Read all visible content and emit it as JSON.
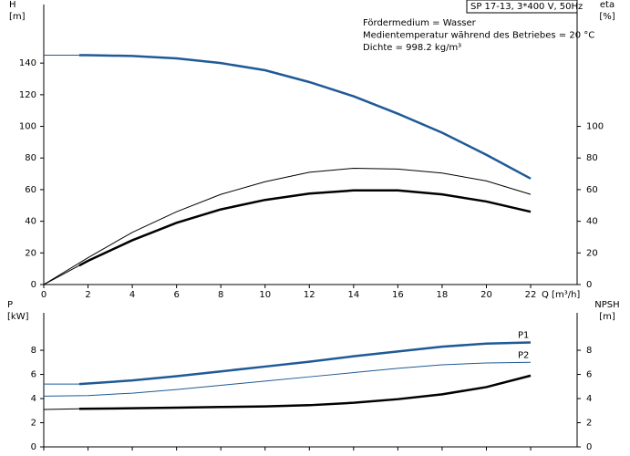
{
  "chart_data": [
    {
      "type": "line",
      "title": "SP 17-13, 3*400 V, 50Hz",
      "annotations": [
        "Fördermedium = Wasser",
        "Medientemperatur während des Betriebes = 20 °C",
        "Dichte = 998.2 kg/m³"
      ],
      "xlabel": "Q [m³/h]",
      "ylabel": "H",
      "ylabel_unit": "[m]",
      "y2label": "eta",
      "y2label_unit": "[%]",
      "xlim": [
        0,
        24.1
      ],
      "ylim": [
        0,
        177
      ],
      "y2lim": [
        0,
        177
      ],
      "xticks": [
        0,
        2,
        4,
        6,
        8,
        10,
        12,
        14,
        16,
        18,
        20,
        22
      ],
      "yticks": [
        0,
        20,
        40,
        60,
        80,
        100,
        120,
        140
      ],
      "y2ticks": [
        0,
        20,
        40,
        60,
        80,
        100
      ],
      "series": [
        {
          "color": "#1f5a96",
          "width": 1,
          "x": [
            0,
            1.6
          ],
          "values": [
            145,
            145
          ]
        },
        {
          "color": "#1f5a96",
          "width": 2.5,
          "x": [
            1.6,
            2,
            4,
            6,
            8,
            10,
            12,
            14,
            16,
            18,
            20,
            22
          ],
          "values": [
            145,
            145,
            144.5,
            143,
            140,
            135.5,
            128,
            119,
            108,
            96,
            82,
            67
          ]
        },
        {
          "color": "#000000",
          "width": 1,
          "axis": "y2",
          "x": [
            0,
            2,
            4,
            6,
            8,
            10,
            12,
            14,
            16,
            18,
            20,
            22
          ],
          "values": [
            0,
            17,
            33,
            46,
            57,
            65,
            71,
            73.5,
            73,
            70.5,
            65.5,
            57
          ]
        },
        {
          "color": "#000000",
          "width": 1,
          "axis": "y2",
          "x": [
            0,
            1.6
          ],
          "values": [
            0,
            12
          ]
        },
        {
          "color": "#000000",
          "width": 2.5,
          "axis": "y2",
          "x": [
            1.6,
            2,
            4,
            6,
            8,
            10,
            12,
            14,
            16,
            18,
            20,
            22
          ],
          "values": [
            12,
            15,
            28,
            39,
            47.5,
            53.5,
            57.5,
            59.5,
            59.5,
            57,
            52.5,
            46
          ]
        }
      ]
    },
    {
      "type": "line",
      "ylabel": "P",
      "ylabel_unit": "[kW]",
      "y2label": "NPSH",
      "y2label_unit": "[m]",
      "xlim": [
        0,
        24.1
      ],
      "ylim": [
        0,
        11.1
      ],
      "y2lim": [
        0,
        11.1
      ],
      "xticks": [
        0,
        2,
        4,
        6,
        8,
        10,
        12,
        14,
        16,
        18,
        20,
        22
      ],
      "yticks": [
        0,
        2,
        4,
        6,
        8
      ],
      "y2ticks": [
        0,
        2,
        4,
        6,
        8
      ],
      "series": [
        {
          "color": "#1f5a96",
          "width": 1,
          "x": [
            0,
            1.6
          ],
          "values": [
            5.2,
            5.2
          ]
        },
        {
          "name": "P1",
          "color": "#1f5a96",
          "width": 2.5,
          "x": [
            1.6,
            2,
            4,
            6,
            8,
            10,
            12,
            14,
            16,
            18,
            20,
            22
          ],
          "values": [
            5.2,
            5.25,
            5.5,
            5.85,
            6.25,
            6.65,
            7.05,
            7.5,
            7.9,
            8.3,
            8.55,
            8.65
          ]
        },
        {
          "name": "P2",
          "color": "#1f5a96",
          "width": 1,
          "x": [
            0,
            2,
            4,
            6,
            8,
            10,
            12,
            14,
            16,
            18,
            20,
            22
          ],
          "values": [
            4.2,
            4.25,
            4.45,
            4.75,
            5.1,
            5.45,
            5.8,
            6.15,
            6.5,
            6.8,
            6.95,
            7.0
          ]
        },
        {
          "color": "#000000",
          "width": 1,
          "axis": "y2",
          "x": [
            0,
            1.6
          ],
          "values": [
            3.1,
            3.15
          ]
        },
        {
          "color": "#000000",
          "width": 2.5,
          "axis": "y2",
          "x": [
            1.6,
            4,
            6,
            8,
            10,
            12,
            14,
            16,
            18,
            20,
            22
          ],
          "values": [
            3.15,
            3.2,
            3.25,
            3.3,
            3.35,
            3.45,
            3.65,
            3.95,
            4.35,
            4.95,
            5.9
          ]
        }
      ]
    }
  ]
}
